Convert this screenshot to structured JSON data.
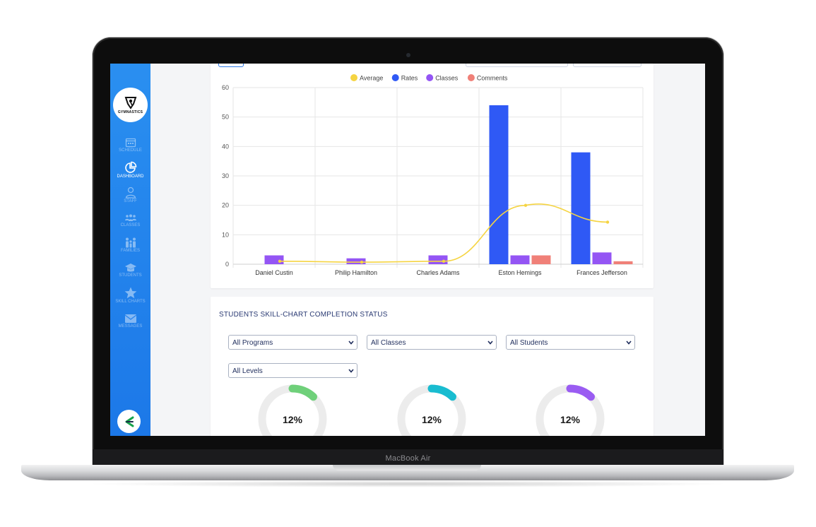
{
  "device": {
    "label": "MacBook Air"
  },
  "brand": {
    "logo_text": "GYMNASTICS"
  },
  "sidebar": {
    "items": [
      {
        "label": "SCHEDULE",
        "icon": "calendar-icon",
        "active": false
      },
      {
        "label": "DASHBOARD",
        "icon": "pie-chart-icon",
        "active": true
      },
      {
        "label": "STAFF",
        "icon": "person-icon",
        "active": false
      },
      {
        "label": "CLASSES",
        "icon": "group-icon",
        "active": false
      },
      {
        "label": "FAMILIES",
        "icon": "family-icon",
        "active": false
      },
      {
        "label": "STUDENTS",
        "icon": "graduation-cap-icon",
        "active": false
      },
      {
        "label": "SKILL CHARTS",
        "icon": "star-icon",
        "active": false
      },
      {
        "label": "MESSAGES",
        "icon": "envelope-icon",
        "active": false
      }
    ],
    "bottom_icon": "chevron-left-icon"
  },
  "colors": {
    "average": "#f5d442",
    "rates": "#2f59f5",
    "classes": "#9455f4",
    "comments": "#f08078",
    "sidebar": "#2488ee"
  },
  "chart_data": {
    "type": "bar",
    "categories": [
      "Daniel Custin",
      "Philip Hamilton",
      "Charles Adams",
      "Eston Hemings",
      "Frances Jefferson"
    ],
    "series": [
      {
        "name": "Rates",
        "type": "bar",
        "values": [
          0,
          0,
          0,
          54,
          38
        ]
      },
      {
        "name": "Classes",
        "type": "bar",
        "values": [
          3,
          2,
          3,
          3,
          4
        ]
      },
      {
        "name": "Comments",
        "type": "bar",
        "values": [
          0,
          0,
          0,
          3,
          1
        ]
      },
      {
        "name": "Average",
        "type": "line",
        "values": [
          1,
          0.7,
          1,
          20,
          14.3
        ]
      }
    ],
    "legend_order": [
      "Average",
      "Rates",
      "Classes",
      "Comments"
    ],
    "legend_position": "top",
    "ylim": [
      0,
      60
    ],
    "yticks": [
      0,
      10,
      20,
      30,
      40,
      50,
      60
    ],
    "grid": true,
    "title": "",
    "xlabel": "",
    "ylabel": ""
  },
  "completion": {
    "title": "STUDENTS SKILL-CHART COMPLETION STATUS",
    "filters": {
      "programs": "All Programs",
      "classes": "All Classes",
      "students": "All Students",
      "levels": "All Levels"
    },
    "donuts": [
      {
        "value_text": "12%",
        "fraction": 0.12,
        "color": "#6fd07a"
      },
      {
        "value_text": "12%",
        "fraction": 0.12,
        "color": "#19bcd0"
      },
      {
        "value_text": "12%",
        "fraction": 0.12,
        "color": "#9a5cf2"
      }
    ]
  }
}
